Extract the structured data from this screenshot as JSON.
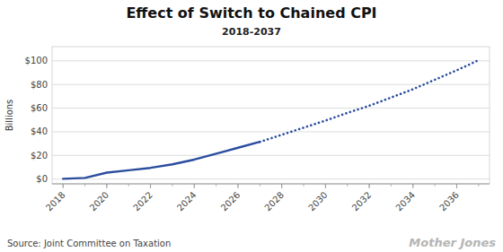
{
  "chart_data": {
    "type": "line",
    "title": "Effect of Switch to Chained CPI",
    "subtitle": "2018-2037",
    "ylabel": "Billions",
    "source": "Source: Joint Committee on Taxation",
    "watermark": "Mother Jones",
    "x": [
      2018,
      2019,
      2020,
      2021,
      2022,
      2023,
      2024,
      2025,
      2026,
      2027,
      2028,
      2029,
      2030,
      2031,
      2032,
      2033,
      2034,
      2035,
      2036,
      2037
    ],
    "series": [
      {
        "color": "#2b4d9e",
        "line_style": "solid",
        "values": [
          0.3,
          1.0,
          5.5,
          7.5,
          9.5,
          12.5,
          16.5,
          21.5,
          26.5,
          31.5,
          null,
          null,
          null,
          null,
          null,
          null,
          null,
          null,
          null,
          null
        ]
      },
      {
        "color": "#2b4d9e",
        "line_style": "dotted",
        "values": [
          null,
          null,
          null,
          null,
          null,
          null,
          null,
          null,
          null,
          31.5,
          37.5,
          43.5,
          49.5,
          56.0,
          62.0,
          69.0,
          76.0,
          84.0,
          92.0,
          100.5
        ]
      }
    ],
    "xlim": [
      2017.5,
      2037.5
    ],
    "ylim": [
      -4,
      112
    ],
    "xticks": [
      2018,
      2020,
      2022,
      2024,
      2026,
      2028,
      2030,
      2032,
      2034,
      2036
    ],
    "yticks": [
      {
        "value": 0,
        "label": "$0"
      },
      {
        "value": 20,
        "label": "$20"
      },
      {
        "value": 40,
        "label": "$40"
      },
      {
        "value": 60,
        "label": "$60"
      },
      {
        "value": 80,
        "label": "$80"
      },
      {
        "value": 100,
        "label": "$100"
      }
    ],
    "grid": true
  }
}
